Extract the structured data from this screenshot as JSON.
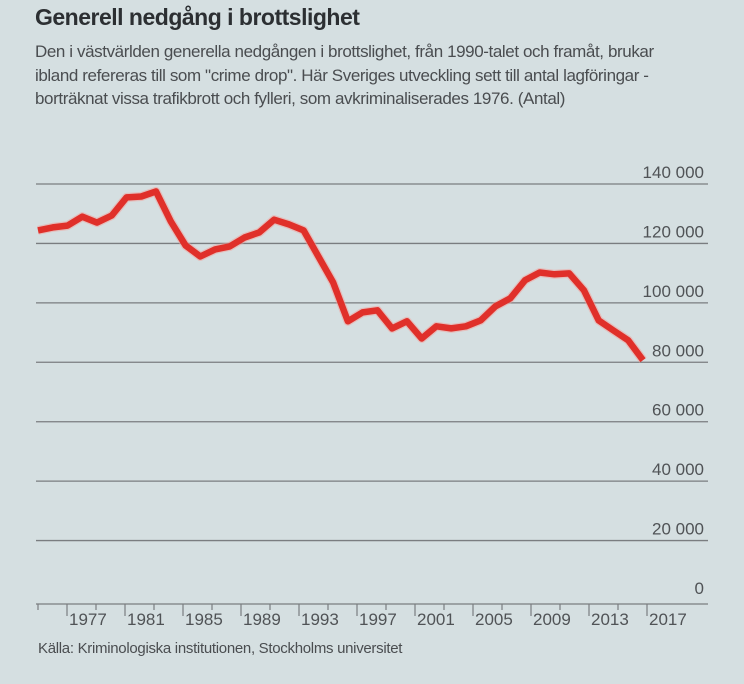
{
  "header": {
    "title": "Generell nedgång i brottslighet",
    "description": "Den i västvärlden generella nedgången i brottslighet, från 1990-talet och framåt, brukar ibland refereras till som \"crime drop\". Här Sveriges utveckling sett till antal lagföringar - borträknat vissa trafikbrott och fylleri, som avkriminaliserades 1976. (Antal)"
  },
  "footer": {
    "source": "Källa: Kriminologiska institutionen, Stockholms universitet"
  },
  "colors": {
    "background": "#d5dfe1",
    "line": "#e0302a",
    "grid": "#7a7d80",
    "text": "#505356"
  },
  "chart_data": {
    "type": "line",
    "title": "Generell nedgång i brottslighet",
    "xlabel": "",
    "ylabel": "Antal",
    "ylim": [
      0,
      140000
    ],
    "xlim": [
      1975,
      2017
    ],
    "grid": true,
    "y_ticks": [
      0,
      20000,
      40000,
      60000,
      80000,
      100000,
      120000,
      140000
    ],
    "y_tick_labels": [
      "0",
      "20 000",
      "40 000",
      "60 000",
      "80 000",
      "100 000",
      "120 000",
      "140 000"
    ],
    "x_ticks": [
      1977,
      1981,
      1985,
      1989,
      1993,
      1997,
      2001,
      2005,
      2009,
      2013,
      2017
    ],
    "x_tick_labels": [
      "1977",
      "1981",
      "1985",
      "1989",
      "1993",
      "1997",
      "2001",
      "2005",
      "2009",
      "2013",
      "2017"
    ],
    "series": [
      {
        "name": "Lagföringar",
        "x": [
          1975,
          1976,
          1977,
          1978,
          1979,
          1980,
          1981,
          1982,
          1983,
          1984,
          1985,
          1986,
          1987,
          1988,
          1989,
          1990,
          1991,
          1992,
          1993,
          1994,
          1995,
          1996,
          1997,
          1998,
          1999,
          2000,
          2001,
          2002,
          2003,
          2004,
          2005,
          2006,
          2007,
          2008,
          2009,
          2010,
          2011,
          2012,
          2013,
          2014,
          2015,
          2016
        ],
        "values": [
          124400,
          125400,
          126000,
          129000,
          127000,
          129400,
          135500,
          135800,
          137500,
          127400,
          119300,
          115600,
          118000,
          119000,
          122000,
          123700,
          128000,
          126400,
          124400,
          115600,
          106900,
          93800,
          96800,
          97500,
          91400,
          93800,
          88000,
          92100,
          91400,
          92100,
          94100,
          98800,
          101500,
          107600,
          110200,
          109600,
          109900,
          104200,
          94100,
          90700,
          87400,
          80700
        ]
      }
    ]
  }
}
